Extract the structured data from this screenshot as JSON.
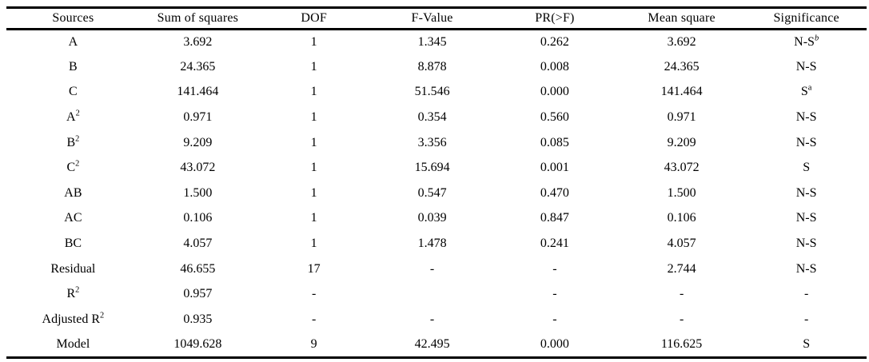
{
  "page": {
    "background_color": "#ffffff",
    "text_color": "#000000",
    "rule_color": "#000000"
  },
  "table": {
    "columns": [
      {
        "id": "sources",
        "label": "Sources"
      },
      {
        "id": "sum-of-squares",
        "label": "Sum of squares"
      },
      {
        "id": "dof",
        "label": "DOF"
      },
      {
        "id": "f-value",
        "label": "F-Value"
      },
      {
        "id": "pr-f",
        "label": "PR(>F)"
      },
      {
        "id": "mean-square",
        "label": "Mean square"
      },
      {
        "id": "significance",
        "label": "Significance"
      }
    ],
    "rows": [
      {
        "cells": [
          "A",
          "3.692",
          "1",
          "1.345",
          "0.262",
          "3.692",
          {
            "text": "N-S",
            "sup": "b",
            "sup_italic": true
          }
        ]
      },
      {
        "cells": [
          "B",
          "24.365",
          "1",
          "8.878",
          "0.008",
          "24.365",
          "N-S"
        ]
      },
      {
        "cells": [
          "C",
          "141.464",
          "1",
          "51.546",
          "0.000",
          "141.464",
          {
            "text": "S",
            "sup": "a",
            "sup_italic": false
          }
        ]
      },
      {
        "cells": [
          {
            "text": "A",
            "sup": "2",
            "sup_italic": false
          },
          "0.971",
          "1",
          "0.354",
          "0.560",
          "0.971",
          "N-S"
        ]
      },
      {
        "cells": [
          {
            "text": "B",
            "sup": "2",
            "sup_italic": false
          },
          "9.209",
          "1",
          "3.356",
          "0.085",
          "9.209",
          "N-S"
        ]
      },
      {
        "cells": [
          {
            "text": "C",
            "sup": "2",
            "sup_italic": false
          },
          "43.072",
          "1",
          "15.694",
          "0.001",
          "43.072",
          "S"
        ]
      },
      {
        "cells": [
          "AB",
          "1.500",
          "1",
          "0.547",
          "0.470",
          "1.500",
          "N-S"
        ]
      },
      {
        "cells": [
          "AC",
          "0.106",
          "1",
          "0.039",
          "0.847",
          "0.106",
          "N-S"
        ]
      },
      {
        "cells": [
          "BC",
          "4.057",
          "1",
          "1.478",
          "0.241",
          "4.057",
          "N-S"
        ]
      },
      {
        "cells": [
          "Residual",
          "46.655",
          "17",
          "-",
          "-",
          "2.744",
          "N-S"
        ]
      },
      {
        "cells": [
          {
            "text": "R",
            "sup": "2",
            "sup_italic": false
          },
          "0.957",
          "-",
          "",
          "-",
          "-",
          "-"
        ]
      },
      {
        "cells": [
          {
            "text": "Adjusted R",
            "sup": "2",
            "sup_italic": false
          },
          "0.935",
          "-",
          "-",
          "-",
          "-",
          "-"
        ]
      },
      {
        "cells": [
          "Model",
          "1049.628",
          "9",
          "42.495",
          "0.000",
          "116.625",
          "S"
        ]
      }
    ]
  }
}
